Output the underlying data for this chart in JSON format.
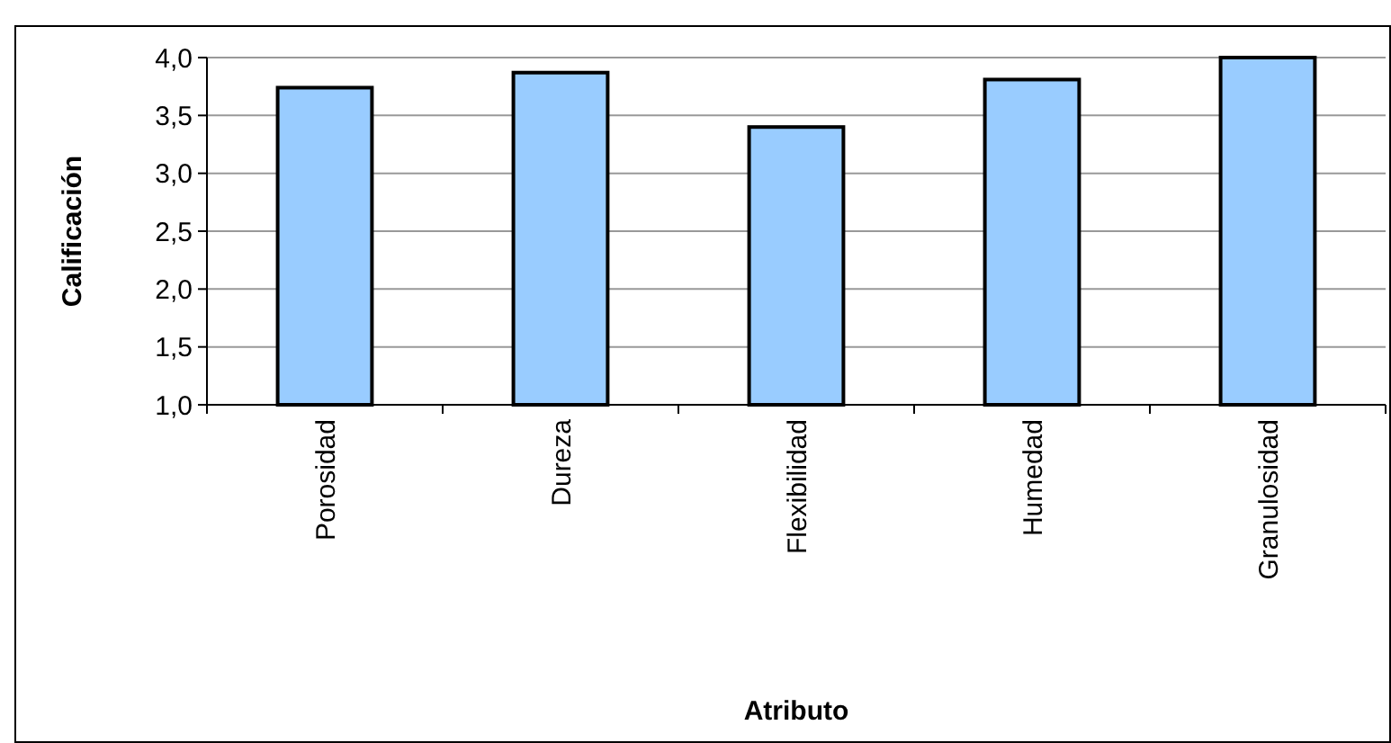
{
  "chart_data": {
    "type": "bar",
    "xlabel": "Atributo",
    "ylabel": "Calificación",
    "categories": [
      "Porosidad",
      "Dureza",
      "Flexibilidad",
      "Humedad",
      "Granulosidad"
    ],
    "values": [
      3.74,
      3.87,
      3.4,
      3.81,
      4.0
    ],
    "color": "#99ccff",
    "ylim": [
      1,
      4
    ],
    "yticks": [
      {
        "value": 1,
        "label": "1,0"
      },
      {
        "value": 1.5,
        "label": "1,5"
      },
      {
        "value": 2,
        "label": "2,0"
      },
      {
        "value": 2.5,
        "label": "2,5"
      },
      {
        "value": 3,
        "label": "3,0"
      },
      {
        "value": 3.5,
        "label": "3,5"
      },
      {
        "value": 4,
        "label": "4,0"
      }
    ],
    "grid": "y"
  }
}
